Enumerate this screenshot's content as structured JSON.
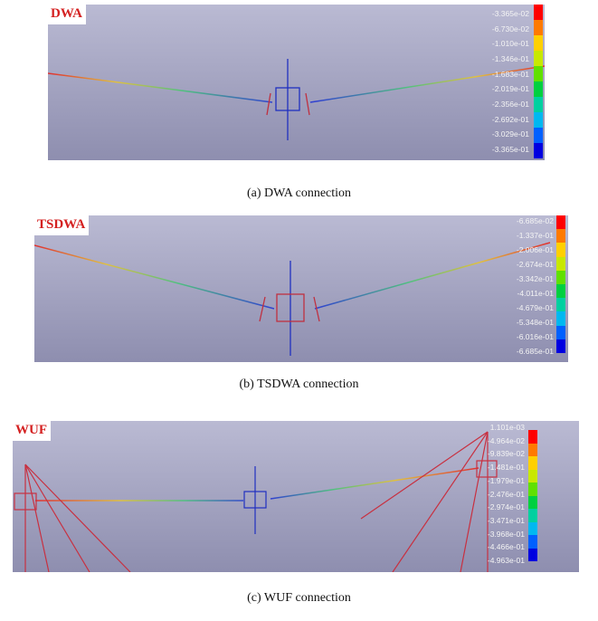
{
  "panels": [
    {
      "tag": "DWA",
      "legend": [
        "-3.365e-02",
        "-6.730e-02",
        "-1.010e-01",
        "-1.346e-01",
        "-1.683e-01",
        "-2.019e-01",
        "-2.356e-01",
        "-2.692e-01",
        "-3.029e-01",
        "-3.365e-01"
      ],
      "caption": "(a) DWA connection"
    },
    {
      "tag": "TSDWA",
      "legend": [
        "-6.685e-02",
        "-1.337e-01",
        "-2.006e-01",
        "-2.674e-01",
        "-3.342e-01",
        "-4.011e-01",
        "-4.679e-01",
        "-5.348e-01",
        "-6.016e-01",
        "-6.685e-01"
      ],
      "caption": "(b) TSDWA connection"
    },
    {
      "tag": "WUF",
      "legend": [
        "1.101e-03",
        "-4.964e-02",
        "-9.839e-02",
        "-1.481e-01",
        "-1.979e-01",
        "-2.476e-01",
        "-2.974e-01",
        "-3.471e-01",
        "-3.968e-01",
        "-4.466e-01",
        "-4.963e-01"
      ],
      "caption": "(c) WUF connection"
    }
  ]
}
